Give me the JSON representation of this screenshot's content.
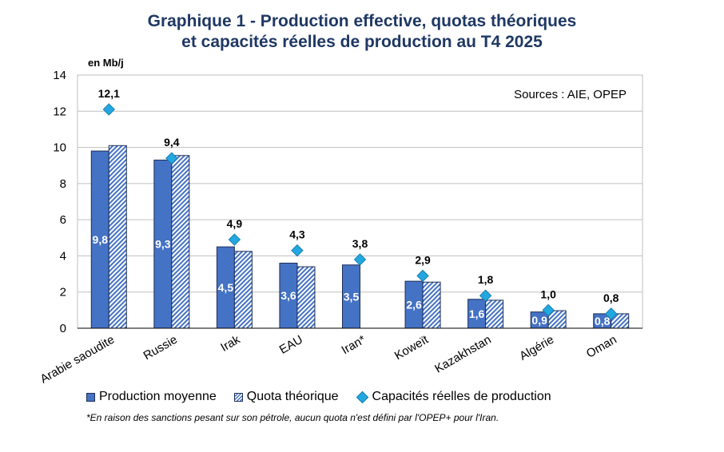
{
  "title_line1": "Graphique 1 - Production effective, quotas théoriques",
  "title_line2": "et capacités réelles de production au T4 2025",
  "unit_label": "en Mb/j",
  "sources": "Sources : AIE, OPEP",
  "legend": {
    "production": "Production moyenne",
    "quota": "Quota théorique",
    "capacity": "Capacités réelles de production"
  },
  "footnote": "*En raison des sanctions pesant sur son pétrole, aucun quota n'est défini par l'OPEP+ pour l'Iran.",
  "colors": {
    "production": "#4472C4",
    "quota_hatch": "#4472C4",
    "capacity": "#22A8E0",
    "title": "#1F3864"
  },
  "chart_data": {
    "type": "bar",
    "title": "Graphique 1 - Production effective, quotas théoriques et capacités réelles de production au T4 2025",
    "ylabel": "en Mb/j",
    "ylim": [
      0,
      14
    ],
    "yticks": [
      0,
      2,
      4,
      6,
      8,
      10,
      12,
      14
    ],
    "grid": true,
    "legend_position": "bottom",
    "categories": [
      "Arabie saoudite",
      "Russie",
      "Irak",
      "EAU",
      "Iran*",
      "Koweït",
      "Kazakhstan",
      "Algérie",
      "Oman"
    ],
    "series": [
      {
        "name": "Production moyenne",
        "kind": "bar",
        "values": [
          9.8,
          9.3,
          4.5,
          3.6,
          3.5,
          2.6,
          1.6,
          0.9,
          0.8
        ],
        "labels": [
          "9,8",
          "9,3",
          "4,5",
          "3,6",
          "3,5",
          "2,6",
          "1,6",
          "0,9",
          "0,8"
        ]
      },
      {
        "name": "Quota théorique",
        "kind": "bar",
        "values": [
          10.1,
          9.55,
          4.25,
          3.4,
          null,
          2.55,
          1.55,
          0.97,
          0.8
        ]
      },
      {
        "name": "Capacités réelles de production",
        "kind": "scatter",
        "marker": "diamond",
        "values": [
          12.1,
          9.4,
          4.9,
          4.3,
          3.8,
          2.9,
          1.8,
          1.0,
          0.8
        ],
        "labels": [
          "12,1",
          "9,4",
          "4,9",
          "4,3",
          "3,8",
          "2,9",
          "1,8",
          "1,0",
          "0,8"
        ]
      }
    ]
  }
}
